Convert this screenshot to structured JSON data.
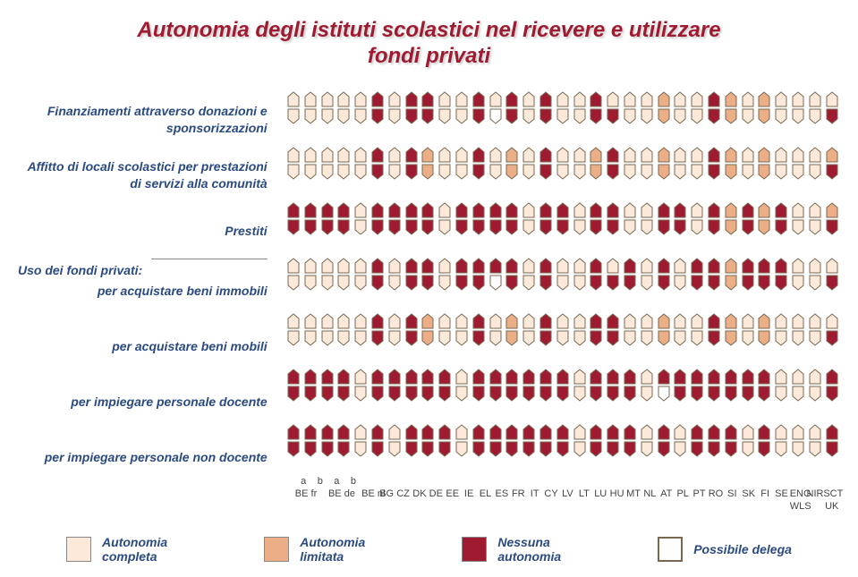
{
  "title_line1": "Autonomia degli istituti scolastici nel ricevere e utilizzare",
  "title_line2": "fondi privati",
  "colors": {
    "full": "#fce9da",
    "limited": "#ecae86",
    "none": "#9e1b32",
    "delega_stroke": "#786850",
    "background": "#ffffff"
  },
  "legend": [
    {
      "label": "Autonomia\ncompleta",
      "fill": "#fce9da"
    },
    {
      "label": "Autonomia\nlimitata",
      "fill": "#ecae86"
    },
    {
      "label": "Nessuna\nautonomia",
      "fill": "#9e1b32"
    },
    {
      "label": "Possibile delega",
      "fill": "none"
    }
  ],
  "row_labels": [
    "Finanziamenti attraverso donazioni e sponsorizzazioni",
    "Affitto di locali scolastici per prestazioni di servizi alla comunità",
    "Prestiti"
  ],
  "section_label": "Uso dei fondi privati:",
  "row_labels_2": [
    "per acquistare beni immobili",
    "per acquistare beni mobili",
    "per impiegare personale docente",
    "per impiegare personale non docente"
  ],
  "countries": [
    "BE fr",
    "",
    "BE de",
    "",
    "BE nl",
    "BG",
    "CZ",
    "DK",
    "DE",
    "EE",
    "IE",
    "EL",
    "ES",
    "FR",
    "IT",
    "CY",
    "LV",
    "LT",
    "LU",
    "HU",
    "MT",
    "NL",
    "AT",
    "PL",
    "PT",
    "RO",
    "SI",
    "SK",
    "FI",
    "SE",
    "ENG WLS",
    "NIR",
    "SCT"
  ],
  "x_super": [
    "a",
    "b",
    "a",
    "b",
    "",
    "",
    "",
    "",
    "",
    "",
    "",
    "",
    "",
    "",
    "",
    "",
    "",
    "",
    "",
    "",
    "",
    "",
    "",
    "",
    "",
    "",
    "",
    "",
    "",
    "",
    "",
    "",
    ""
  ],
  "x_sub": [
    "BE fr",
    "",
    "BE de",
    "",
    "BE nl",
    "BG",
    "CZ",
    "DK",
    "DE",
    "EE",
    "IE",
    "EL",
    "ES",
    "FR",
    "IT",
    "CY",
    "LV",
    "LT",
    "LU",
    "HU",
    "MT",
    "NL",
    "AT",
    "PL",
    "PT",
    "RO",
    "SI",
    "SK",
    "FI",
    "SE",
    "ENG",
    "NIR",
    "SCT"
  ],
  "x_sub2": [
    "",
    "",
    "",
    "",
    "",
    "",
    "",
    "",
    "",
    "",
    "",
    "",
    "",
    "",
    "",
    "",
    "",
    "",
    "",
    "",
    "",
    "",
    "",
    "",
    "",
    "",
    "",
    "",
    "",
    "",
    "WLS",
    "",
    "UK"
  ],
  "rows": [
    [
      [
        "F",
        "F"
      ],
      [
        "F",
        "F"
      ],
      [
        "F",
        "F"
      ],
      [
        "F",
        "F"
      ],
      [
        "F",
        "F"
      ],
      [
        "N",
        "N"
      ],
      [
        "F",
        "F"
      ],
      [
        "N",
        "N"
      ],
      [
        "N",
        "N"
      ],
      [
        "F",
        "F"
      ],
      [
        "F",
        "F"
      ],
      [
        "N",
        "N"
      ],
      [
        "F",
        "D"
      ],
      [
        "N",
        "N"
      ],
      [
        "F",
        "F"
      ],
      [
        "N",
        "N"
      ],
      [
        "F",
        "F"
      ],
      [
        "F",
        "F"
      ],
      [
        "N",
        "N"
      ],
      [
        "F",
        "N"
      ],
      [
        "F",
        "F"
      ],
      [
        "F",
        "F"
      ],
      [
        "L",
        "L"
      ],
      [
        "F",
        "F"
      ],
      [
        "F",
        "F"
      ],
      [
        "N",
        "N"
      ],
      [
        "L",
        "L"
      ],
      [
        "F",
        "F"
      ],
      [
        "L",
        "L"
      ],
      [
        "F",
        "F"
      ],
      [
        "F",
        "F"
      ],
      [
        "F",
        "F"
      ],
      [
        "F",
        "N"
      ]
    ],
    [
      [
        "F",
        "F"
      ],
      [
        "F",
        "F"
      ],
      [
        "F",
        "F"
      ],
      [
        "F",
        "F"
      ],
      [
        "F",
        "F"
      ],
      [
        "N",
        "N"
      ],
      [
        "F",
        "F"
      ],
      [
        "N",
        "N"
      ],
      [
        "L",
        "L"
      ],
      [
        "F",
        "F"
      ],
      [
        "F",
        "F"
      ],
      [
        "N",
        "N"
      ],
      [
        "F",
        "F"
      ],
      [
        "L",
        "L"
      ],
      [
        "F",
        "F"
      ],
      [
        "N",
        "N"
      ],
      [
        "F",
        "F"
      ],
      [
        "F",
        "F"
      ],
      [
        "L",
        "L"
      ],
      [
        "N",
        "N"
      ],
      [
        "F",
        "F"
      ],
      [
        "F",
        "F"
      ],
      [
        "L",
        "L"
      ],
      [
        "F",
        "F"
      ],
      [
        "F",
        "F"
      ],
      [
        "N",
        "N"
      ],
      [
        "L",
        "L"
      ],
      [
        "F",
        "F"
      ],
      [
        "L",
        "L"
      ],
      [
        "F",
        "F"
      ],
      [
        "F",
        "F"
      ],
      [
        "F",
        "F"
      ],
      [
        "L",
        "N"
      ]
    ],
    [
      [
        "N",
        "N"
      ],
      [
        "N",
        "N"
      ],
      [
        "N",
        "N"
      ],
      [
        "N",
        "N"
      ],
      [
        "F",
        "F"
      ],
      [
        "N",
        "N"
      ],
      [
        "N",
        "N"
      ],
      [
        "N",
        "N"
      ],
      [
        "N",
        "N"
      ],
      [
        "F",
        "F"
      ],
      [
        "N",
        "N"
      ],
      [
        "N",
        "N"
      ],
      [
        "N",
        "N"
      ],
      [
        "N",
        "N"
      ],
      [
        "F",
        "F"
      ],
      [
        "N",
        "N"
      ],
      [
        "N",
        "N"
      ],
      [
        "F",
        "F"
      ],
      [
        "N",
        "N"
      ],
      [
        "N",
        "N"
      ],
      [
        "F",
        "F"
      ],
      [
        "F",
        "F"
      ],
      [
        "N",
        "N"
      ],
      [
        "N",
        "N"
      ],
      [
        "F",
        "F"
      ],
      [
        "N",
        "N"
      ],
      [
        "L",
        "L"
      ],
      [
        "N",
        "N"
      ],
      [
        "L",
        "L"
      ],
      [
        "N",
        "N"
      ],
      [
        "F",
        "F"
      ],
      [
        "F",
        "F"
      ],
      [
        "L",
        "N"
      ]
    ],
    [
      [
        "F",
        "F"
      ],
      [
        "F",
        "F"
      ],
      [
        "F",
        "F"
      ],
      [
        "F",
        "F"
      ],
      [
        "F",
        "F"
      ],
      [
        "N",
        "N"
      ],
      [
        "F",
        "F"
      ],
      [
        "N",
        "N"
      ],
      [
        "N",
        "N"
      ],
      [
        "F",
        "F"
      ],
      [
        "N",
        "N"
      ],
      [
        "N",
        "N"
      ],
      [
        "N",
        "D"
      ],
      [
        "N",
        "N"
      ],
      [
        "F",
        "F"
      ],
      [
        "N",
        "N"
      ],
      [
        "F",
        "F"
      ],
      [
        "F",
        "F"
      ],
      [
        "N",
        "N"
      ],
      [
        "F",
        "N"
      ],
      [
        "N",
        "N"
      ],
      [
        "F",
        "F"
      ],
      [
        "N",
        "N"
      ],
      [
        "F",
        "F"
      ],
      [
        "N",
        "N"
      ],
      [
        "N",
        "N"
      ],
      [
        "L",
        "L"
      ],
      [
        "N",
        "N"
      ],
      [
        "N",
        "N"
      ],
      [
        "N",
        "N"
      ],
      [
        "F",
        "F"
      ],
      [
        "F",
        "F"
      ],
      [
        "F",
        "N"
      ]
    ],
    [
      [
        "F",
        "F"
      ],
      [
        "F",
        "F"
      ],
      [
        "F",
        "F"
      ],
      [
        "F",
        "F"
      ],
      [
        "F",
        "F"
      ],
      [
        "N",
        "N"
      ],
      [
        "F",
        "F"
      ],
      [
        "N",
        "N"
      ],
      [
        "L",
        "L"
      ],
      [
        "F",
        "F"
      ],
      [
        "F",
        "F"
      ],
      [
        "N",
        "N"
      ],
      [
        "F",
        "F"
      ],
      [
        "L",
        "L"
      ],
      [
        "F",
        "F"
      ],
      [
        "N",
        "N"
      ],
      [
        "F",
        "F"
      ],
      [
        "F",
        "F"
      ],
      [
        "N",
        "N"
      ],
      [
        "N",
        "N"
      ],
      [
        "F",
        "F"
      ],
      [
        "F",
        "F"
      ],
      [
        "L",
        "L"
      ],
      [
        "F",
        "F"
      ],
      [
        "F",
        "F"
      ],
      [
        "N",
        "N"
      ],
      [
        "L",
        "L"
      ],
      [
        "F",
        "F"
      ],
      [
        "L",
        "L"
      ],
      [
        "F",
        "F"
      ],
      [
        "F",
        "F"
      ],
      [
        "F",
        "F"
      ],
      [
        "F",
        "N"
      ]
    ],
    [
      [
        "N",
        "N"
      ],
      [
        "N",
        "N"
      ],
      [
        "N",
        "N"
      ],
      [
        "N",
        "N"
      ],
      [
        "F",
        "F"
      ],
      [
        "N",
        "N"
      ],
      [
        "N",
        "N"
      ],
      [
        "N",
        "N"
      ],
      [
        "N",
        "N"
      ],
      [
        "N",
        "N"
      ],
      [
        "F",
        "F"
      ],
      [
        "N",
        "N"
      ],
      [
        "N",
        "N"
      ],
      [
        "N",
        "N"
      ],
      [
        "N",
        "N"
      ],
      [
        "N",
        "N"
      ],
      [
        "N",
        "N"
      ],
      [
        "F",
        "F"
      ],
      [
        "N",
        "N"
      ],
      [
        "N",
        "N"
      ],
      [
        "N",
        "N"
      ],
      [
        "F",
        "F"
      ],
      [
        "N",
        "D"
      ],
      [
        "N",
        "N"
      ],
      [
        "N",
        "N"
      ],
      [
        "N",
        "N"
      ],
      [
        "N",
        "N"
      ],
      [
        "N",
        "N"
      ],
      [
        "N",
        "N"
      ],
      [
        "F",
        "F"
      ],
      [
        "F",
        "F"
      ],
      [
        "F",
        "F"
      ],
      [
        "N",
        "N"
      ]
    ],
    [
      [
        "N",
        "N"
      ],
      [
        "N",
        "N"
      ],
      [
        "N",
        "N"
      ],
      [
        "N",
        "N"
      ],
      [
        "F",
        "F"
      ],
      [
        "N",
        "N"
      ],
      [
        "F",
        "F"
      ],
      [
        "N",
        "N"
      ],
      [
        "N",
        "N"
      ],
      [
        "N",
        "N"
      ],
      [
        "F",
        "F"
      ],
      [
        "N",
        "N"
      ],
      [
        "N",
        "N"
      ],
      [
        "N",
        "N"
      ],
      [
        "N",
        "N"
      ],
      [
        "N",
        "N"
      ],
      [
        "N",
        "N"
      ],
      [
        "F",
        "F"
      ],
      [
        "N",
        "N"
      ],
      [
        "N",
        "N"
      ],
      [
        "N",
        "N"
      ],
      [
        "F",
        "F"
      ],
      [
        "N",
        "N"
      ],
      [
        "F",
        "F"
      ],
      [
        "N",
        "N"
      ],
      [
        "N",
        "N"
      ],
      [
        "N",
        "N"
      ],
      [
        "F",
        "F"
      ],
      [
        "N",
        "N"
      ],
      [
        "F",
        "F"
      ],
      [
        "F",
        "F"
      ],
      [
        "F",
        "F"
      ],
      [
        "N",
        "N"
      ]
    ]
  ]
}
